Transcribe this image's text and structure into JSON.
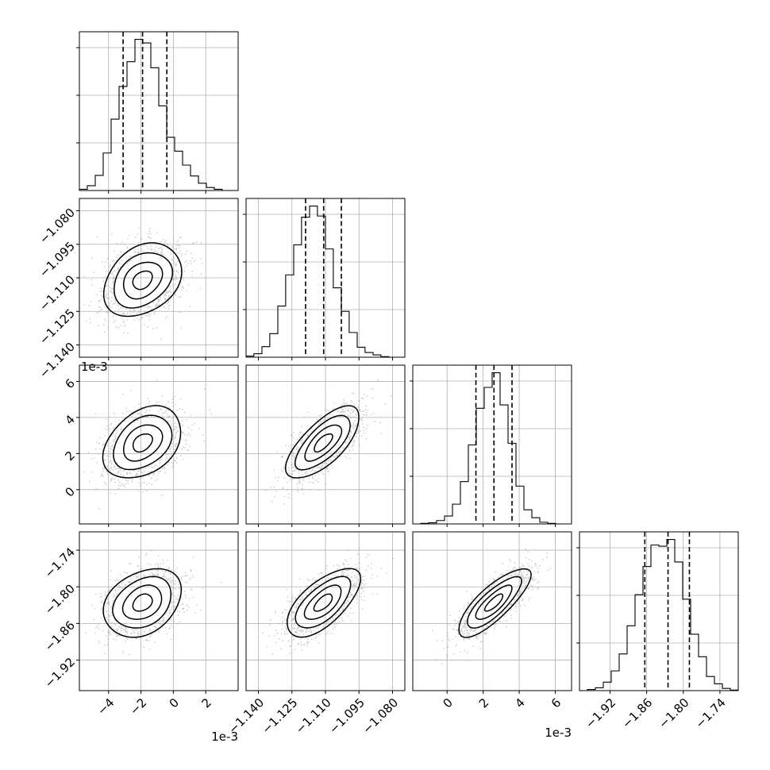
{
  "figure": {
    "offset_labels": [
      {
        "panel": "p10",
        "text": "1e-3"
      },
      {
        "panel": "p30",
        "text": "1e-3"
      },
      {
        "panel": "p32",
        "text": "1e-3"
      }
    ]
  },
  "chart_data": {
    "type": "corner",
    "grid": true,
    "parameters": [
      {
        "index": 0,
        "offset_label": "1e-3",
        "range": [
          -5.8,
          4.0
        ],
        "ticks": [
          -4,
          -2,
          0,
          2
        ],
        "tick_labels": [
          "−4",
          "−2",
          "0",
          "2"
        ]
      },
      {
        "index": 1,
        "range": [
          -1.1455,
          -1.0745
        ],
        "ticks": [
          -1.14,
          -1.125,
          -1.11,
          -1.095,
          -1.08
        ],
        "tick_labels": [
          "−1.140",
          "−1.125",
          "−1.110",
          "−1.095",
          "−1.080"
        ]
      },
      {
        "index": 2,
        "offset_label": "1e-3",
        "range": [
          -1.9,
          6.9
        ],
        "ticks": [
          0,
          2,
          4,
          6
        ],
        "tick_labels": [
          "0",
          "2",
          "4",
          "6"
        ]
      },
      {
        "index": 3,
        "range": [
          -1.97,
          -1.71
        ],
        "ticks": [
          -1.92,
          -1.86,
          -1.8,
          -1.74
        ],
        "tick_labels": [
          "−1.92",
          "−1.86",
          "−1.80",
          "−1.74"
        ]
      }
    ],
    "histograms": [
      {
        "parameter": 0,
        "bin_edges": [
          -5.8,
          -5.31,
          -4.82,
          -4.33,
          -3.84,
          -3.35,
          -2.86,
          -2.37,
          -1.88,
          -1.39,
          -0.9,
          -0.41,
          0.08,
          0.57,
          1.06,
          1.55,
          2.04,
          2.53,
          3.02,
          3.51,
          4.0
        ],
        "counts": [
          2,
          8,
          25,
          62,
          118,
          172,
          213,
          250,
          244,
          203,
          140,
          88,
          65,
          42,
          24,
          12,
          5,
          2,
          0,
          0
        ],
        "quantiles": [
          -3.1,
          -1.9,
          -0.4
        ]
      },
      {
        "parameter": 1,
        "bin_edges": [
          -1.1455,
          -1.142,
          -1.1384,
          -1.1349,
          -1.1313,
          -1.1278,
          -1.1242,
          -1.1207,
          -1.1171,
          -1.1136,
          -1.11,
          -1.1065,
          -1.1029,
          -1.0994,
          -1.0958,
          -1.0923,
          -1.0887,
          -1.0852,
          -1.0816,
          -1.0781,
          -1.0745
        ],
        "counts": [
          2,
          6,
          18,
          40,
          87,
          140,
          191,
          238,
          257,
          240,
          184,
          118,
          78,
          42,
          17,
          8,
          4,
          1,
          0,
          0
        ],
        "quantiles": [
          -1.1189,
          -1.1108,
          -1.1029
        ]
      },
      {
        "parameter": 2,
        "bin_edges": [
          -1.9,
          -1.46,
          -1.02,
          -0.58,
          -0.14,
          0.3,
          0.74,
          1.18,
          1.62,
          2.06,
          2.5,
          2.94,
          3.38,
          3.82,
          4.26,
          4.7,
          5.14,
          5.58,
          6.02,
          6.46,
          6.9
        ],
        "counts": [
          0,
          1,
          2,
          6,
          14,
          35,
          75,
          140,
          205,
          242,
          268,
          211,
          143,
          67,
          25,
          11,
          3,
          1,
          0,
          0
        ],
        "quantiles": [
          1.6,
          2.6,
          3.6
        ]
      },
      {
        "parameter": 3,
        "bin_edges": [
          -1.97,
          -1.957,
          -1.944,
          -1.931,
          -1.918,
          -1.905,
          -1.892,
          -1.879,
          -1.866,
          -1.853,
          -1.84,
          -1.827,
          -1.814,
          -1.801,
          -1.788,
          -1.775,
          -1.762,
          -1.749,
          -1.736,
          -1.723,
          -1.71
        ],
        "counts": [
          0,
          2,
          5,
          15,
          35,
          65,
          115,
          170,
          220,
          258,
          256,
          268,
          228,
          162,
          100,
          60,
          25,
          12,
          4,
          1
        ],
        "quantiles": [
          -1.863,
          -1.825,
          -1.79
        ]
      }
    ],
    "pairs": [
      {
        "x_param": 0,
        "y_param": 1,
        "mean": [
          -1.9,
          -1.111
        ],
        "sd": [
          1.2,
          0.0082
        ],
        "corr": 0.3
      },
      {
        "x_param": 0,
        "y_param": 2,
        "mean": [
          -1.9,
          2.6
        ],
        "sd": [
          1.2,
          1.0
        ],
        "corr": 0.35
      },
      {
        "x_param": 1,
        "y_param": 2,
        "mean": [
          -1.111,
          2.6
        ],
        "sd": [
          0.0082,
          1.0
        ],
        "corr": 0.7
      },
      {
        "x_param": 0,
        "y_param": 3,
        "mean": [
          -1.9,
          -1.826
        ],
        "sd": [
          1.2,
          0.028
        ],
        "corr": 0.3
      },
      {
        "x_param": 1,
        "y_param": 3,
        "mean": [
          -1.111,
          -1.826
        ],
        "sd": [
          0.0082,
          0.028
        ],
        "corr": 0.65
      },
      {
        "x_param": 2,
        "y_param": 3,
        "mean": [
          2.6,
          -1.826
        ],
        "sd": [
          1.0,
          0.028
        ],
        "corr": 0.8
      }
    ],
    "contour_sigma_levels": [
      0.5,
      1.0,
      1.5,
      2.0
    ]
  }
}
